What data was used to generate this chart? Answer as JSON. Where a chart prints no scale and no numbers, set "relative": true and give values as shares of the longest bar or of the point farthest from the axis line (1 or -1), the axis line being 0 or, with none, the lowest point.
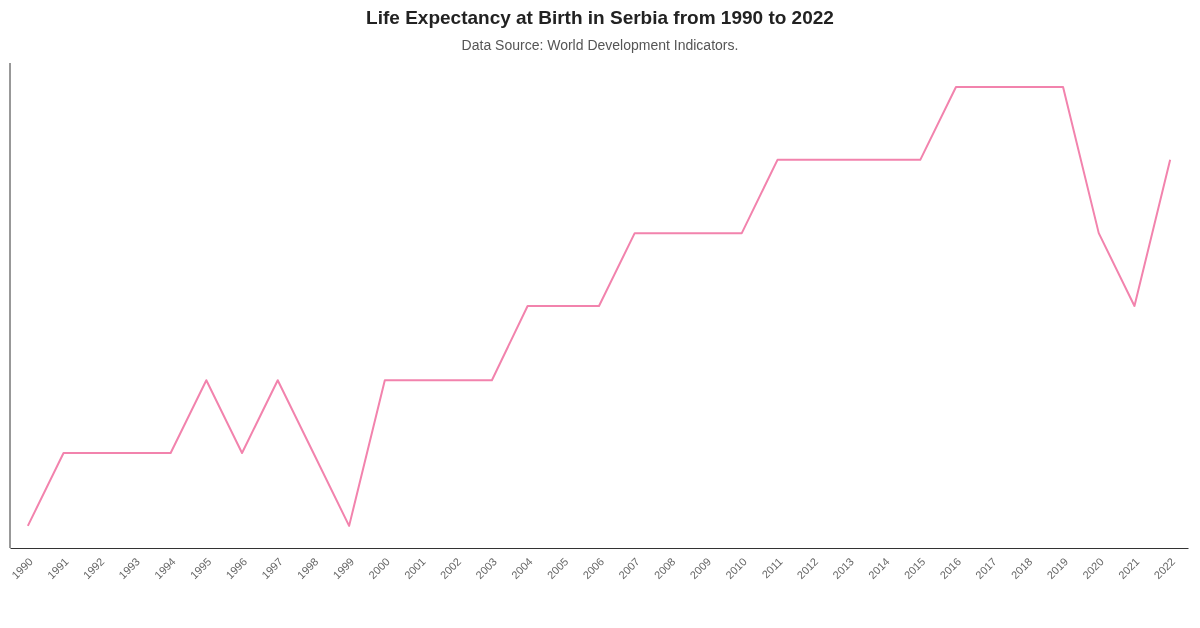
{
  "chart_data": {
    "type": "line",
    "title": "Life Expectancy at Birth in Serbia from 1990 to 2022",
    "subtitle": "Data Source: World Development Indicators.",
    "relative": true,
    "marker": "none",
    "categories": [
      "1990",
      "1991",
      "1992",
      "1993",
      "1994",
      "1995",
      "1996",
      "1997",
      "1998",
      "1999",
      "2000",
      "2001",
      "2002",
      "2003",
      "2004",
      "2005",
      "2006",
      "2007",
      "2008",
      "2009",
      "2010",
      "2011",
      "2012",
      "2013",
      "2014",
      "2015",
      "2016",
      "2017",
      "2018",
      "2019",
      "2020",
      "2021",
      "2022"
    ],
    "series": [
      {
        "color": "#f283ad",
        "values": [
          0.048,
          0.206,
          0.206,
          0.206,
          0.206,
          0.364,
          0.206,
          0.364,
          0.206,
          0.048,
          0.364,
          0.364,
          0.364,
          0.364,
          0.525,
          0.525,
          0.525,
          0.683,
          0.683,
          0.683,
          0.683,
          0.842,
          0.842,
          0.842,
          0.842,
          0.842,
          1,
          1,
          1,
          1,
          0.683,
          0.525,
          0.842
        ]
      }
    ]
  }
}
